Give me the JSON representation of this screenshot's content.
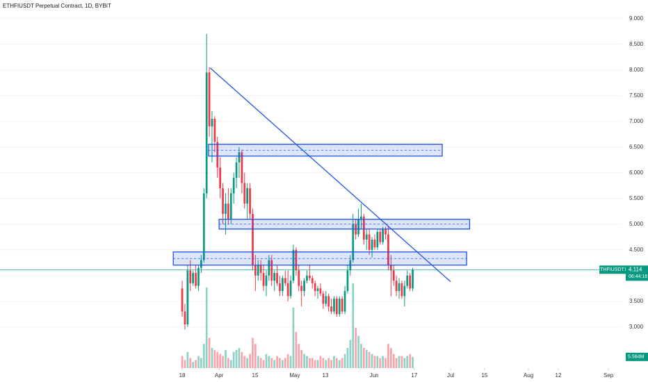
{
  "chart_data": {
    "type": "candlestick",
    "title": "ETHFIUSDT Perpetual Contract, 1D, BYBIT",
    "symbol_label": "ETHFIUSDT.P",
    "last_price": 4.114,
    "last_price_label": "4.114",
    "countdown": "06:44:16",
    "volume_label": "5.564M",
    "up_color": "#089981",
    "down_color": "#f23645",
    "drawing_color": "#1e53e5",
    "ylim": [
      2.2,
      9.36
    ],
    "xlim": [
      -67.2,
      162.3
    ],
    "vlim": [
      0,
      62
    ],
    "yticks": [
      {
        "value": 3,
        "label": "3.000"
      },
      {
        "value": 3.5,
        "label": "3.500"
      },
      {
        "value": 4,
        "label": "4.000"
      },
      {
        "value": 4.5,
        "label": "4.500"
      },
      {
        "value": 5,
        "label": "5.000"
      },
      {
        "value": 5.5,
        "label": "5.500"
      },
      {
        "value": 6,
        "label": "6.000"
      },
      {
        "value": 6.5,
        "label": "6.500"
      },
      {
        "value": 7,
        "label": "7.000"
      },
      {
        "value": 7.5,
        "label": "7.500"
      },
      {
        "value": 8,
        "label": "8.000"
      },
      {
        "value": 8.5,
        "label": "8.500"
      },
      {
        "value": 9,
        "label": "9.000"
      }
    ],
    "xticks": [
      {
        "value": 0,
        "label": "18"
      },
      {
        "value": 13.6,
        "label": "Apr"
      },
      {
        "value": 26.9,
        "label": "15"
      },
      {
        "value": 41.5,
        "label": "May"
      },
      {
        "value": 52.8,
        "label": "13"
      },
      {
        "value": 70.8,
        "label": "Jun"
      },
      {
        "value": 85.6,
        "label": "17"
      },
      {
        "value": 99,
        "label": "Jul"
      },
      {
        "value": 111.5,
        "label": "15"
      },
      {
        "value": 127.7,
        "label": "Aug"
      },
      {
        "value": 138.7,
        "label": "12"
      },
      {
        "value": 157.2,
        "label": "Sep"
      }
    ],
    "open": [
      3.75,
      3.3,
      3.05,
      4.1,
      3.85,
      4.05,
      3.8,
      4.15,
      4.3,
      5.6,
      7.95,
      6.9,
      7.05,
      6.6,
      6.1,
      5.7,
      5.2,
      5.4,
      5.1,
      5.6,
      5.9,
      6.2,
      6.4,
      5.8,
      5.4,
      5.7,
      5.2,
      4.2,
      4.0,
      4.2,
      4.05,
      3.8,
      4.0,
      4.3,
      3.9,
      4.05,
      3.85,
      3.7,
      3.95,
      3.85,
      3.6,
      3.9,
      4.5,
      4.1,
      3.8,
      3.7,
      3.9,
      4.0,
      3.95,
      3.85,
      3.7,
      3.75,
      3.65,
      3.45,
      3.6,
      3.4,
      3.3,
      3.55,
      3.25,
      3.55,
      3.3,
      3.7,
      4.1,
      4.3,
      5.0,
      4.8,
      5.1,
      5.15,
      4.7,
      4.8,
      4.5,
      4.7,
      4.55,
      4.85,
      4.65,
      4.9,
      4.8,
      4.2,
      4.1,
      3.9,
      3.7,
      3.85,
      3.6,
      3.8,
      4.0,
      3.75
    ],
    "high": [
      3.9,
      3.45,
      4.2,
      4.3,
      4.1,
      4.2,
      4.2,
      4.4,
      5.7,
      8.7,
      8.05,
      7.2,
      7.1,
      6.7,
      6.3,
      5.8,
      5.6,
      5.7,
      5.7,
      6.0,
      6.3,
      6.5,
      6.45,
      6.0,
      5.8,
      5.8,
      5.3,
      4.4,
      4.3,
      4.3,
      4.2,
      4.1,
      4.4,
      4.4,
      4.1,
      4.2,
      4.0,
      4.0,
      4.1,
      4.1,
      4.0,
      4.6,
      4.55,
      4.2,
      3.9,
      3.95,
      4.1,
      4.2,
      4.0,
      3.9,
      3.8,
      3.85,
      3.7,
      3.7,
      3.65,
      3.55,
      3.6,
      3.6,
      3.6,
      3.6,
      3.8,
      4.2,
      4.4,
      5.2,
      5.1,
      5.3,
      5.4,
      5.2,
      4.9,
      4.9,
      4.75,
      4.8,
      4.9,
      4.9,
      4.95,
      4.95,
      4.95,
      4.4,
      4.2,
      4.0,
      3.95,
      3.9,
      3.9,
      4.1,
      4.05,
      4.15
    ],
    "low": [
      3.2,
      2.95,
      3.0,
      3.7,
      3.8,
      3.75,
      3.7,
      4.05,
      4.25,
      5.5,
      6.7,
      6.2,
      6.4,
      5.9,
      5.5,
      5.0,
      4.8,
      5.0,
      5.0,
      5.4,
      5.7,
      5.9,
      5.6,
      5.3,
      5.1,
      5.1,
      4.1,
      3.7,
      3.9,
      3.9,
      3.7,
      3.6,
      3.9,
      3.8,
      3.7,
      3.8,
      3.6,
      3.6,
      3.8,
      3.5,
      3.55,
      3.85,
      4.0,
      3.7,
      3.4,
      3.6,
      3.85,
      3.9,
      3.75,
      3.6,
      3.55,
      3.6,
      3.35,
      3.4,
      3.3,
      3.25,
      3.25,
      3.2,
      3.2,
      3.25,
      3.25,
      3.65,
      4.0,
      4.25,
      4.7,
      4.75,
      4.9,
      4.6,
      4.5,
      4.4,
      4.35,
      4.5,
      4.5,
      4.6,
      4.6,
      4.7,
      4.1,
      3.6,
      3.8,
      3.6,
      3.55,
      3.55,
      3.4,
      3.75,
      3.7,
      3.7
    ],
    "close": [
      3.3,
      3.05,
      4.1,
      3.85,
      4.05,
      3.8,
      4.15,
      4.3,
      5.6,
      7.95,
      6.9,
      7.05,
      6.6,
      6.1,
      5.7,
      5.2,
      5.4,
      5.1,
      5.6,
      5.9,
      6.2,
      6.4,
      5.8,
      5.4,
      5.7,
      5.2,
      4.2,
      4.0,
      4.2,
      4.05,
      3.8,
      4.0,
      4.3,
      3.9,
      4.05,
      3.85,
      3.7,
      3.95,
      3.85,
      3.6,
      3.9,
      4.5,
      4.1,
      3.8,
      3.7,
      3.9,
      4.0,
      3.95,
      3.85,
      3.7,
      3.75,
      3.65,
      3.45,
      3.6,
      3.4,
      3.3,
      3.55,
      3.25,
      3.55,
      3.3,
      3.7,
      4.1,
      4.3,
      5.0,
      4.8,
      5.1,
      5.15,
      4.7,
      4.8,
      4.5,
      4.7,
      4.55,
      4.85,
      4.65,
      4.9,
      4.8,
      4.2,
      4.1,
      3.9,
      3.7,
      3.85,
      3.6,
      3.8,
      4.0,
      3.75,
      4.114
    ],
    "volume": [
      6,
      4,
      8,
      5,
      3,
      4,
      6,
      5,
      12,
      40,
      15,
      10,
      9,
      8,
      7,
      6,
      9,
      5,
      4,
      8,
      9,
      10,
      8,
      6,
      5,
      7,
      15,
      12,
      6,
      5,
      4,
      7,
      6,
      5,
      4,
      6,
      5,
      4,
      5,
      7,
      6,
      30,
      18,
      12,
      9,
      7,
      6,
      5,
      5,
      4,
      4,
      6,
      5,
      4,
      5,
      4,
      6,
      5,
      4,
      5,
      7,
      10,
      14,
      42,
      20,
      16,
      12,
      10,
      9,
      8,
      7,
      6,
      6,
      5,
      6,
      5,
      12,
      10,
      7,
      5,
      6,
      6,
      5,
      6,
      7,
      5.564
    ],
    "zones": [
      {
        "x": [
          9.7,
          95.9
        ],
        "low": 6.324,
        "high": 6.554
      },
      {
        "x": [
          13.6,
          106
        ],
        "low": 4.905,
        "high": 5.095
      },
      {
        "x": [
          -3.3,
          104.9
        ],
        "low": 4.203,
        "high": 4.459
      }
    ],
    "trendline": {
      "x": [
        10.3,
        99
      ],
      "y": [
        8.04,
        3.88
      ]
    }
  }
}
